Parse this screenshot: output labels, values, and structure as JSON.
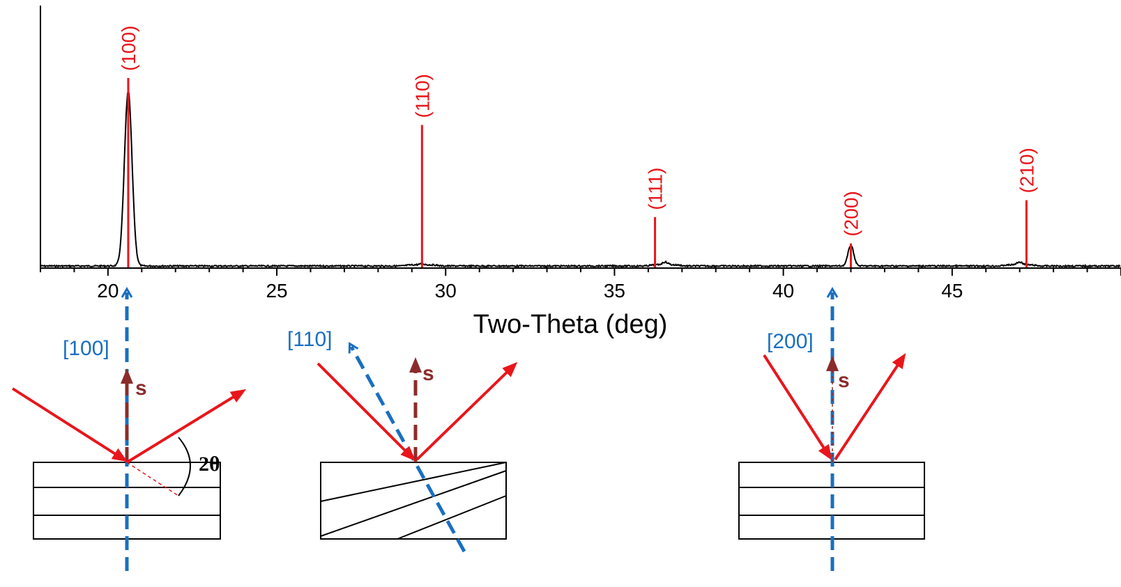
{
  "chart_data": {
    "type": "line",
    "xlabel": "Two-Theta (deg)",
    "ylabel": "",
    "xlim": [
      18,
      50
    ],
    "x_ticks": [
      20,
      25,
      30,
      35,
      40,
      45
    ],
    "grid": false,
    "series": [
      {
        "pattern_peaks": [
          {
            "x": 20.6,
            "height": 0.93
          },
          {
            "x": 29.3,
            "height": 0.005
          },
          {
            "x": 36.5,
            "height": 0.015
          },
          {
            "x": 42.0,
            "height": 0.11
          },
          {
            "x": 47.0,
            "height": 0.015
          }
        ]
      }
    ],
    "reference_lines": [
      {
        "label": "(100)",
        "x": 20.6,
        "height": 1.0
      },
      {
        "label": "(110)",
        "x": 29.3,
        "height": 0.75
      },
      {
        "label": "(111)",
        "x": 36.2,
        "height": 0.26
      },
      {
        "label": "(200)",
        "x": 42.0,
        "height": 0.12
      },
      {
        "label": "(210)",
        "x": 47.2,
        "height": 0.35
      }
    ]
  },
  "diagram": {
    "panels": [
      {
        "direction_label": "[100]",
        "normal_label": "s",
        "angle_label": "2θ"
      },
      {
        "direction_label": "[110]",
        "normal_label": "s"
      },
      {
        "direction_label": "[200]",
        "normal_label": "s"
      }
    ]
  },
  "colors": {
    "reference": "#e8161b",
    "direction": "#1a6fc0",
    "normal": "#8b2c2c",
    "pattern": "#000000"
  }
}
